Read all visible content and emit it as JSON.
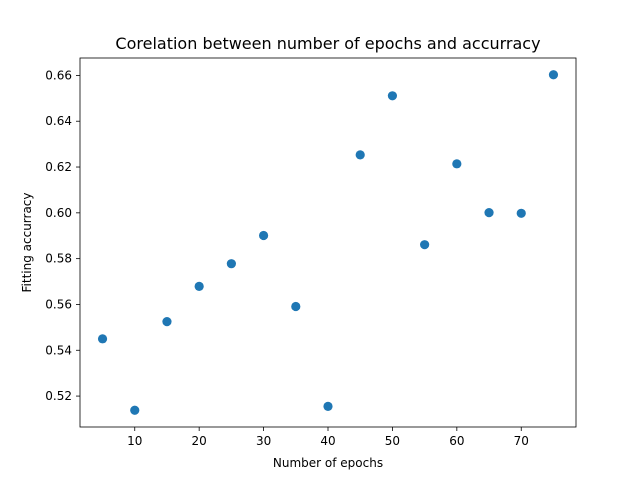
{
  "chart_data": {
    "type": "scatter",
    "title": "Corelation between number of epochs and accurracy",
    "xlabel": "Number of epochs",
    "ylabel": "Fitting accurracy",
    "x": [
      5,
      10,
      15,
      20,
      25,
      30,
      35,
      40,
      45,
      50,
      55,
      60,
      65,
      70,
      75
    ],
    "y": [
      0.545,
      0.5138,
      0.5525,
      0.5679,
      0.5778,
      0.5901,
      0.5591,
      0.5155,
      0.6253,
      0.6511,
      0.5861,
      0.6214,
      0.6001,
      0.5998,
      0.6603
    ],
    "xlim": [
      1.5,
      78.5
    ],
    "ylim": [
      0.5065,
      0.6676
    ],
    "xticks": [
      10,
      20,
      30,
      40,
      50,
      60,
      70
    ],
    "yticks": [
      0.52,
      0.54,
      0.56,
      0.58,
      0.6,
      0.62,
      0.64,
      0.66
    ],
    "xtick_labels": [
      "10",
      "20",
      "30",
      "40",
      "50",
      "60",
      "70"
    ],
    "ytick_labels": [
      "0.52",
      "0.54",
      "0.56",
      "0.58",
      "0.60",
      "0.62",
      "0.64",
      "0.66"
    ],
    "grid": false,
    "marker_color": "#1f77b4"
  }
}
